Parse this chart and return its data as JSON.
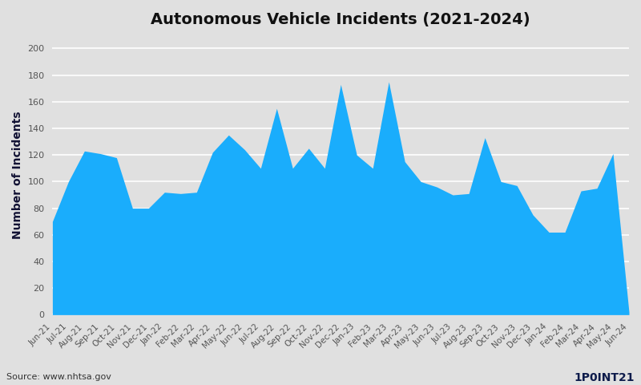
{
  "title": "Autonomous Vehicle Incidents (2021-2024)",
  "ylabel": "Number of Incidents",
  "source": "Source: www.nhtsa.gov",
  "fill_color": "#1AADFC",
  "bg_color": "#E0E0E0",
  "plot_bg_color": "#E0E0E0",
  "ylim": [
    0,
    210
  ],
  "yticks": [
    0,
    20,
    40,
    60,
    80,
    100,
    120,
    140,
    160,
    180,
    200
  ],
  "labels": [
    "Jun-21",
    "Jul-21",
    "Aug-21",
    "Sep-21",
    "Oct-21",
    "Nov-21",
    "Dec-21",
    "Jan-22",
    "Feb-22",
    "Mar-22",
    "Apr-22",
    "May-22",
    "Jun-22",
    "Jul-22",
    "Aug-22",
    "Sep-22",
    "Oct-22",
    "Nov-22",
    "Dec-22",
    "Jan-23",
    "Feb-23",
    "Mar-23",
    "Apr-23",
    "May-23",
    "Jun-23",
    "Jul-23",
    "Aug-23",
    "Sep-23",
    "Oct-23",
    "Nov-23",
    "Dec-23",
    "Jan-24",
    "Feb-24",
    "Mar-24",
    "Apr-24",
    "May-24",
    "Jun-24"
  ],
  "values": [
    70,
    100,
    123,
    121,
    118,
    80,
    80,
    92,
    91,
    92,
    122,
    135,
    124,
    110,
    155,
    110,
    125,
    110,
    173,
    120,
    110,
    175,
    115,
    100,
    96,
    90,
    91,
    133,
    100,
    97,
    75,
    62,
    62,
    93,
    95,
    121,
    2
  ],
  "title_fontsize": 14,
  "label_fontsize": 7.5,
  "ylabel_fontsize": 10,
  "title_color": "#111111",
  "ylabel_color": "#111133",
  "tick_color": "#555555"
}
